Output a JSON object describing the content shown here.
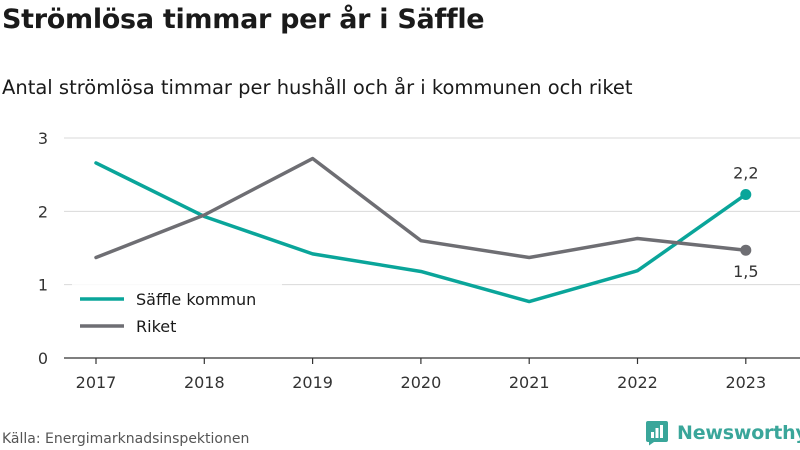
{
  "title": "Strömlösa timmar per år i Säffle",
  "subtitle": "Antal strömlösa timmar per hushåll och år i kommunen och riket",
  "source": "Källa: Energimarknadsinspektionen",
  "brand": {
    "name": "Newsworthy",
    "icon": "newsworthy-logo-icon",
    "color": "#3aa69a"
  },
  "chart_data": {
    "type": "line",
    "x": [
      "2017",
      "2018",
      "2019",
      "2020",
      "2021",
      "2022",
      "2023"
    ],
    "yticks": [
      "0",
      "1",
      "2",
      "3"
    ],
    "ylim": [
      0,
      3
    ],
    "grid": true,
    "legend_position": "bottom-left",
    "series": [
      {
        "name": "Säffle kommun",
        "color": "#0aa59a",
        "values": [
          2.66,
          1.93,
          1.42,
          1.18,
          0.77,
          1.19,
          2.23
        ],
        "end_label": "2,2",
        "end_label_position": "above"
      },
      {
        "name": "Riket",
        "color": "#6e6e73",
        "values": [
          1.37,
          1.95,
          2.72,
          1.6,
          1.37,
          1.63,
          1.47
        ],
        "end_label": "1,5",
        "end_label_position": "below"
      }
    ]
  }
}
